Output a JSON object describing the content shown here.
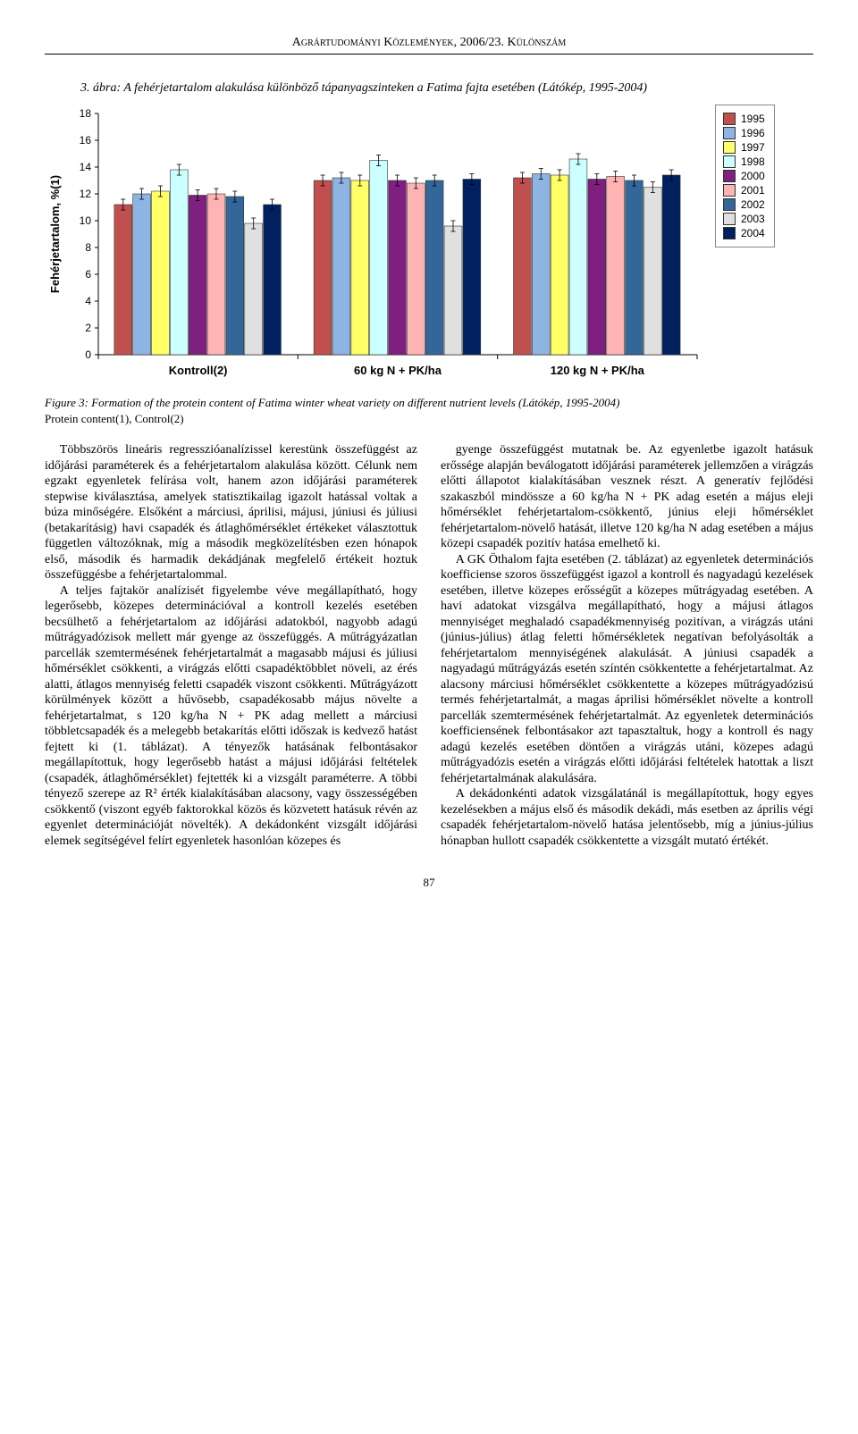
{
  "running_head": "Agrártudományi Közlemények, 2006/23. Különszám",
  "fig_top_caption": "3. ábra: A fehérjetartalom alakulása különböző tápanyagszinteken a Fatima fajta esetében (Látókép, 1995-2004)",
  "fig_bottom_caption": "Figure 3: Formation of the protein content of Fatima winter wheat variety on different nutrient levels (Látókép, 1995-2004)",
  "fig_legend_note": "Protein content(1), Control(2)",
  "chart": {
    "type": "bar",
    "y_label": "Fehérjetartalom, %(1)",
    "y_label_fontsize": 13,
    "ylim": [
      0,
      18
    ],
    "ytick_step": 2,
    "categories": [
      "Kontroll(2)",
      "60 kg N + PK/ha",
      "120 kg N + PK/ha"
    ],
    "series_years": [
      "1995",
      "1996",
      "1997",
      "1998",
      "2000",
      "2001",
      "2002",
      "2003",
      "2004"
    ],
    "series_colors": [
      "#c0504d",
      "#8db4e2",
      "#ffff66",
      "#ccffff",
      "#7f1f7f",
      "#ffb3b3",
      "#336699",
      "#e0e0e0",
      "#002060"
    ],
    "values": [
      [
        11.2,
        12.0,
        12.2,
        13.8,
        11.9,
        12.0,
        11.8,
        9.8,
        11.2
      ],
      [
        13.0,
        13.2,
        13.0,
        14.5,
        13.0,
        12.8,
        13.0,
        9.6,
        13.1
      ],
      [
        13.2,
        13.5,
        13.4,
        14.6,
        13.1,
        13.3,
        13.0,
        12.5,
        13.4
      ]
    ],
    "error_bar": 0.4,
    "background_color": "#ffffff",
    "axis_color": "#000000",
    "tick_fontsize": 12,
    "bar_border": "#333333",
    "cat_label_fontsize": 13
  },
  "body_paragraphs": {
    "p1": "Többszörös lineáris regresszióanalízissel kerestünk összefüggést az időjárási paraméterek és a fehérjetartalom alakulása között. Célunk nem egzakt egyenletek felírása volt, hanem azon időjárási paraméterek stepwise kiválasztása, amelyek statisztikailag igazolt hatással voltak a búza minőségére. Elsőként a márciusi, áprilisi, májusi, júniusi és júliusi (betakarításig) havi csapadék és átlaghőmérséklet értékeket választottuk független változóknak, míg a második megközelítésben ezen hónapok első, második és harmadik dekádjának megfelelő értékeit hoztuk összefüggésbe a fehérjetartalommal.",
    "p2": "A teljes fajtakör analízisét figyelembe véve megállapítható, hogy legerősebb, közepes determinációval a kontroll kezelés esetében becsülhető a fehérjetartalom az időjárási adatokból, nagyobb adagú műtrágyadózisok mellett már gyenge az összefüggés. A műtrágyázatlan parcellák szemtermésének fehérjetartalmát a magasabb májusi és júliusi hőmérséklet csökkenti, a virágzás előtti csapadéktöbblet növeli, az érés alatti, átlagos mennyiség feletti csapadék viszont csökkenti. Műtrágyázott körülmények között a hűvösebb, csapadékosabb május növelte a fehérjetartalmat, s 120 kg/ha N + PK adag mellett a márciusi többletcsapadék és a melegebb betakarítás előtti időszak is kedvező hatást fejtett ki (1. táblázat). A tényezők hatásának felbontásakor megállapítottuk, hogy legerősebb hatást a májusi időjárási feltételek (csapadék, átlaghőmérséklet) fejtették ki a vizsgált paraméterre. A többi tényező szerepe az R² érték kialakításában alacsony, vagy összességében csökkentő (viszont egyéb faktorokkal közös és közvetett hatásuk révén az egyenlet determinációját növelték). A dekádonként vizsgált időjárási elemek segítségével felírt egyenletek hasonlóan közepes és",
    "p3": "gyenge összefüggést mutatnak be. Az egyenletbe igazolt hatásuk erőssége alapján beválogatott időjárási paraméterek jellemzően a virágzás előtti állapotot kialakításában vesznek részt. A generatív fejlődési szakaszból mindössze a 60 kg/ha N + PK adag esetén a május eleji hőmérséklet fehérjetartalom-csökkentő, június eleji hőmérséklet fehérjetartalom-növelő hatását, illetve 120 kg/ha N adag esetében a május közepi csapadék pozitív hatása emelhető ki.",
    "p4": "A GK Öthalom fajta esetében (2. táblázat) az egyenletek determinációs koefficiense szoros összefüggést igazol a kontroll és nagyadagú kezelések esetében, illetve közepes erősségűt a közepes műtrágyadag esetében. A havi adatokat vizsgálva megállapítható, hogy a májusi átlagos mennyiséget meghaladó csapadékmennyiség pozitívan, a virágzás utáni (június-július) átlag feletti hőmérsékletek negatívan befolyásolták a fehérjetartalom mennyiségének alakulását. A júniusi csapadék a nagyadagú műtrágyázás esetén színtén csökkentette a fehérjetartalmat. Az alacsony márciusi hőmérséklet csökkentette a közepes műtrágyadózisú termés fehérjetartalmát, a magas áprilisi hőmérséklet növelte a kontroll parcellák szemtermésének fehérjetartalmát. Az egyenletek determinációs koefficiensének felbontásakor azt tapasztaltuk, hogy a kontroll és nagy adagú kezelés esetében döntően a virágzás utáni, közepes adagú műtrágyadózis esetén a virágzás előtti időjárási feltételek hatottak a liszt fehérjetartalmának alakulására.",
    "p5": "A dekádonkénti adatok vizsgálatánál is megállapítottuk, hogy egyes kezelésekben a május első és második dekádi, más esetben az április végi csapadék fehérjetartalom-növelő hatása jelentősebb, míg a június-július hónapban hullott csapadék csökkentette a vizsgált mutató értékét."
  },
  "page_number": "87"
}
